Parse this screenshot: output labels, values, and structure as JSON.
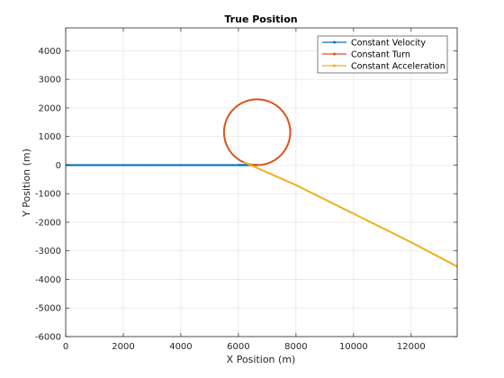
{
  "chart_data": {
    "type": "line",
    "title": "True Position",
    "xlabel": "X Position (m)",
    "ylabel": "Y Position (m)",
    "xlim": [
      0,
      13600
    ],
    "ylim": [
      -6000,
      4800
    ],
    "grid": true,
    "legend_position": "top-right",
    "xticks": [
      0,
      2000,
      4000,
      6000,
      8000,
      10000,
      12000
    ],
    "xtick_labels": [
      "0",
      "2000",
      "4000",
      "6000",
      "8000",
      "10000",
      "12000"
    ],
    "yticks": [
      4000,
      3000,
      2000,
      1000,
      0,
      -1000,
      -2000,
      -3000,
      -4000,
      -5000,
      -6000
    ],
    "ytick_labels": [
      "4000",
      "3000",
      "2000",
      "1000",
      "0",
      "-1000",
      "-2000",
      "-3000",
      "-4000",
      "-5000",
      "-6000"
    ],
    "series": [
      {
        "name": "Constant Velocity",
        "color": "#0072BD",
        "marker": "dot",
        "points": [
          [
            0,
            0
          ],
          [
            2000,
            0
          ],
          [
            4000,
            0
          ],
          [
            6000,
            0
          ],
          [
            6650,
            0
          ]
        ]
      },
      {
        "name": "Constant Turn",
        "color": "#D95319",
        "marker": "dot",
        "shape": "circle",
        "center": [
          6650,
          1150
        ],
        "radius": 1150
      },
      {
        "name": "Constant Acceleration",
        "color": "#EDB120",
        "marker": "dot",
        "points": [
          [
            6200,
            100
          ],
          [
            8000,
            -700
          ],
          [
            10000,
            -1700
          ],
          [
            12000,
            -2700
          ],
          [
            13600,
            -3550
          ]
        ]
      }
    ]
  }
}
